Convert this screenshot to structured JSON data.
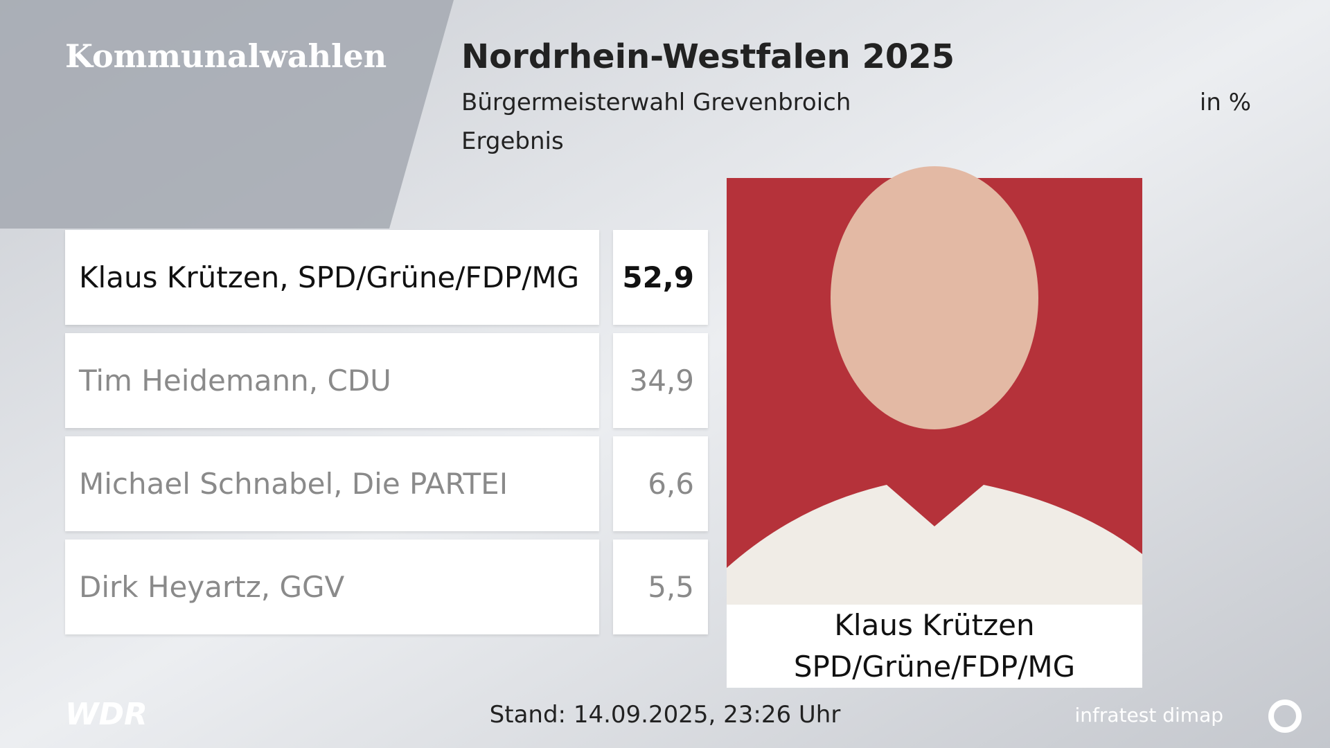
{
  "header": {
    "section": "Kommunalwahlen",
    "title": "Nordrhein-Westfalen 2025",
    "subtitle": "Bürgermeisterwahl Grevenbroich",
    "unit": "in %",
    "label": "Ergebnis"
  },
  "table": {
    "rows": [
      [
        "Klaus Krützen, SPD/Grüne/FDP/MG",
        "52,9"
      ],
      [
        "Tim Heidemann, CDU",
        "34,9"
      ],
      [
        "Michael Schnabel, Die PARTEI",
        "6,6"
      ],
      [
        "Dirk Heyartz, GGV",
        "5,5"
      ]
    ]
  },
  "winner": {
    "name": "Klaus Krützen",
    "party": "SPD/Grüne/FDP/MG"
  },
  "footer": {
    "broadcaster": "WDR",
    "timestamp": "Stand: 14.09.2025, 23:26 Uhr",
    "source": "infratest dimap"
  }
}
